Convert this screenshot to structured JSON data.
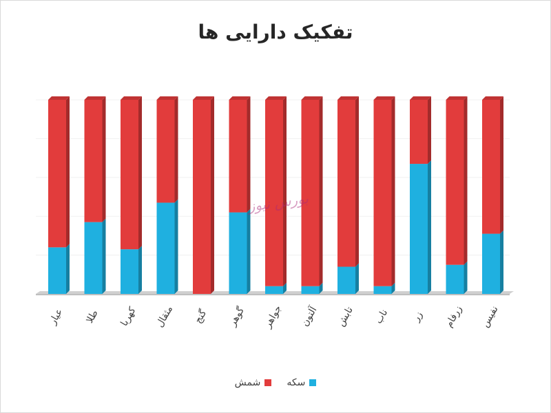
{
  "chart_data": {
    "type": "bar",
    "stacked": true,
    "percent_stacked": true,
    "title": "تفکیک دارایی ها",
    "categories": [
      "عیار",
      "طلا",
      "کهربا",
      "مثقال",
      "گنج",
      "گوهر",
      "جواهر",
      "آلتون",
      "تابش",
      "ناب",
      "زر",
      "زرفام",
      "نفیس"
    ],
    "series": [
      {
        "name": "سکه",
        "color": "#1fb0e0",
        "values": [
          24,
          37,
          23,
          47,
          0,
          42,
          4,
          4,
          14,
          4,
          67,
          15,
          31
        ]
      },
      {
        "name": "شمش",
        "color": "#e23c3c",
        "values": [
          76,
          63,
          77,
          53,
          100,
          58,
          96,
          96,
          86,
          96,
          33,
          85,
          69
        ]
      }
    ],
    "ylim": [
      0,
      100
    ],
    "grid": true,
    "legend_position": "bottom"
  },
  "watermark": "بورس نیوز"
}
